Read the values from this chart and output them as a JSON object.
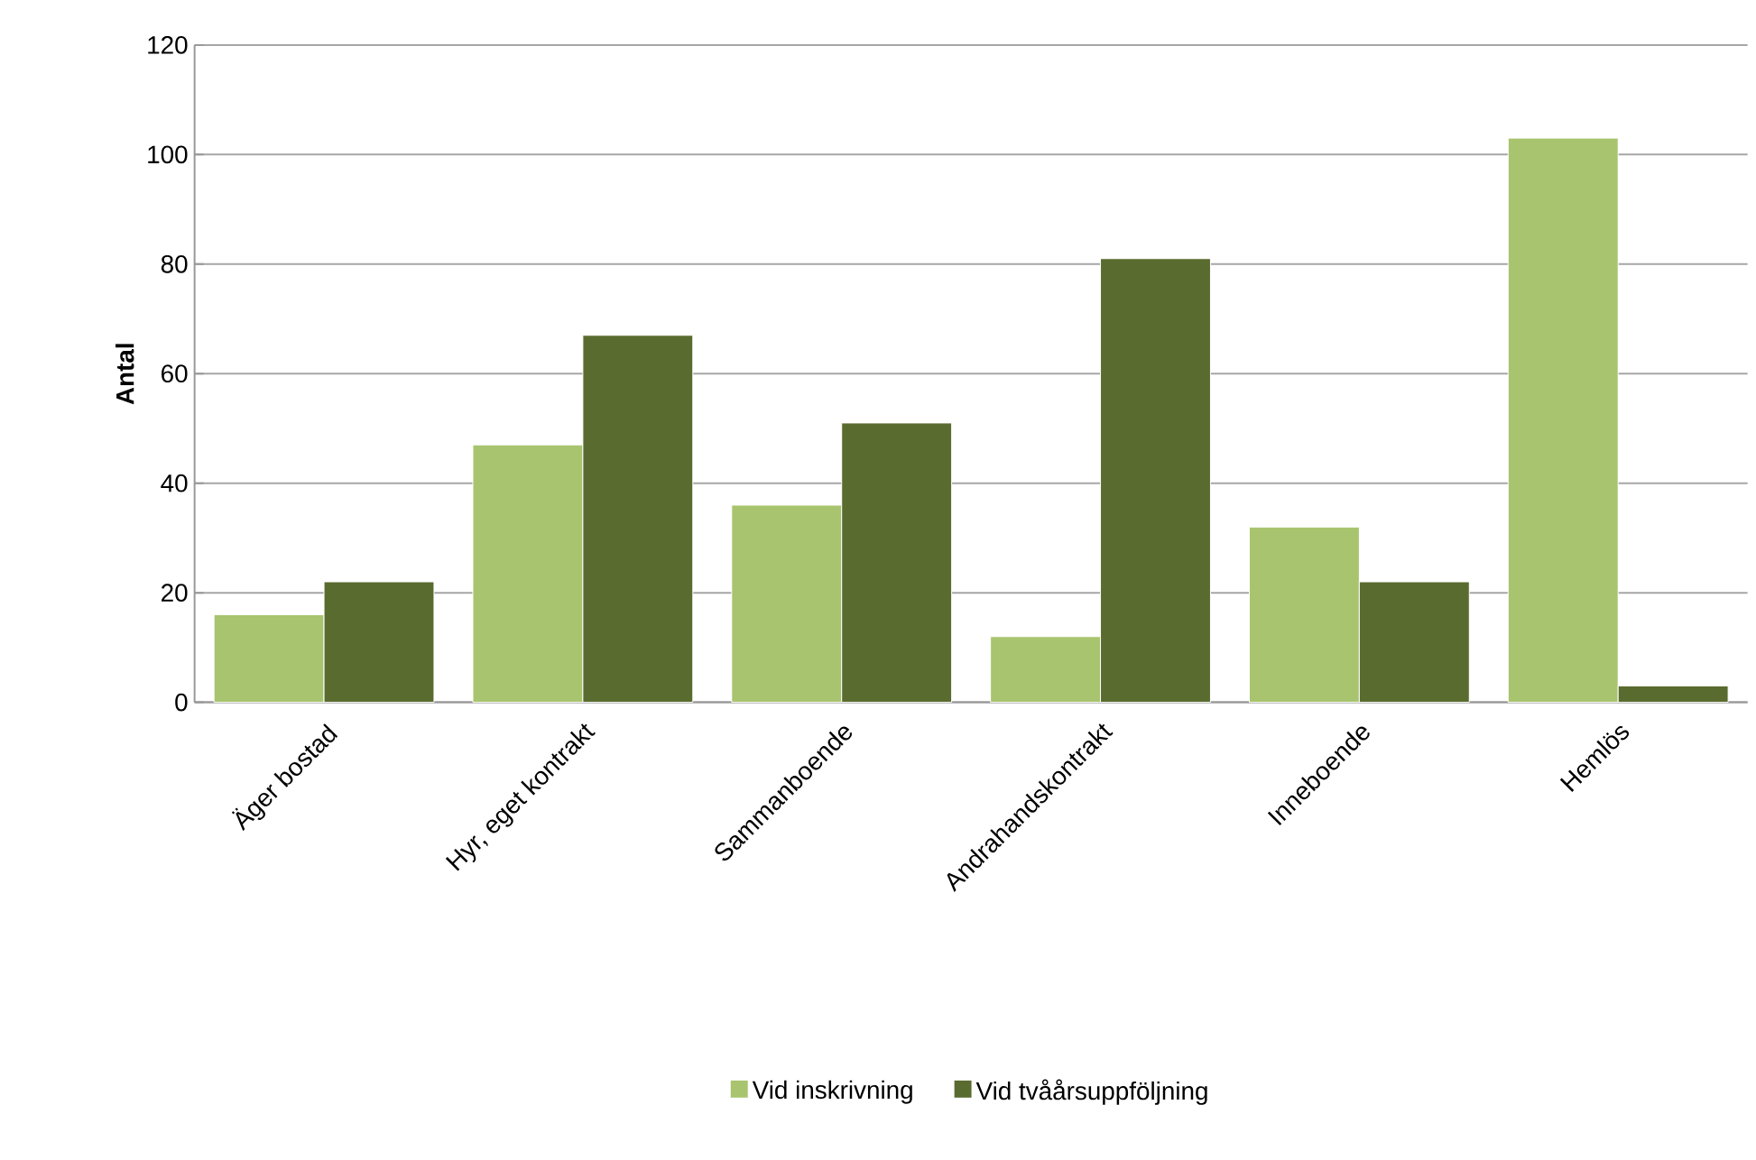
{
  "chart_data": {
    "type": "bar",
    "ylabel": "Antal",
    "categories": [
      "Äger bostad",
      "Hyr, eget kontrakt",
      "Sammanboende",
      "Andrahandskontrakt",
      "Inneboende",
      "Hemlös"
    ],
    "series": [
      {
        "name": "Vid inskrivning",
        "color": "#a8c46e",
        "values": [
          16,
          47,
          36,
          12,
          32,
          103
        ]
      },
      {
        "name": "Vid tvåårsuppföljning",
        "color": "#5a6b2f",
        "values": [
          22,
          67,
          51,
          81,
          22,
          3
        ]
      }
    ],
    "ylim": [
      0,
      120
    ],
    "yticks": [
      0,
      20,
      40,
      60,
      80,
      100,
      120
    ],
    "grid": "y",
    "legend": "bottom"
  }
}
